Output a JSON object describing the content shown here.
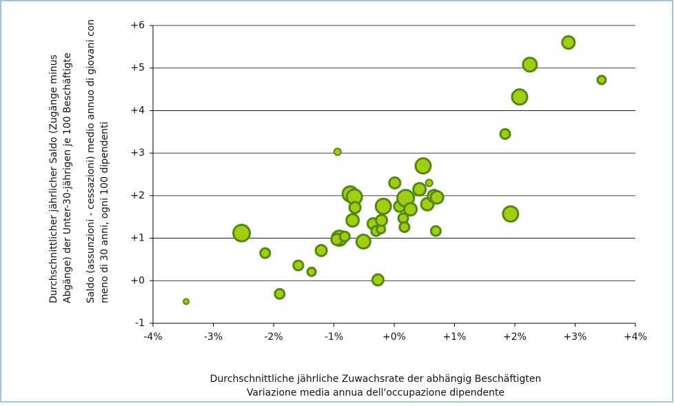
{
  "chart_data": {
    "type": "bubble",
    "x_label": [
      "Durchschnittliche jährliche Zuwachsrate der abhängig Beschäftigten",
      "Variazione media annua dell'occupazione dipendente"
    ],
    "y_label_de": [
      "Durchschnittlicher jährlicher Saldo (Zugänge minus",
      "Abgänge) der Unter-30-jährigen je 100 Beschäftigte"
    ],
    "y_label_it": [
      "Saldo (assunzioni - cessazioni) medio annuo di giovani con",
      "meno di 30 anni, ogni 100 dipendenti"
    ],
    "fill": "#a3cd12",
    "stroke": "#4e8a0f",
    "x": [
      -3.45,
      -2.53,
      -2.14,
      -1.9,
      -1.59,
      -1.37,
      -1.21,
      -0.94,
      -0.91,
      -0.95,
      -0.82,
      -0.73,
      -0.66,
      -0.65,
      -0.69,
      -0.51,
      -0.35,
      -0.3,
      -0.27,
      -0.22,
      -0.21,
      -0.18,
      0.01,
      0.09,
      0.15,
      0.17,
      0.19,
      0.27,
      0.42,
      0.48,
      0.55,
      0.58,
      0.66,
      0.69,
      0.71,
      1.84,
      1.93,
      2.08,
      2.25,
      2.89,
      3.44
    ],
    "y": [
      -0.49,
      1.12,
      0.65,
      -0.31,
      0.36,
      0.21,
      0.71,
      3.03,
      1.0,
      0.97,
      1.04,
      2.04,
      1.97,
      1.72,
      1.42,
      0.92,
      1.34,
      1.17,
      0.02,
      1.21,
      1.42,
      1.75,
      2.3,
      1.75,
      1.47,
      1.26,
      1.94,
      1.68,
      2.15,
      2.7,
      1.8,
      2.3,
      1.99,
      1.17,
      1.96,
      3.45,
      1.57,
      4.32,
      5.08,
      5.6,
      4.72
    ],
    "size": [
      4,
      12,
      7,
      7,
      7,
      6,
      8,
      5,
      11,
      8,
      7,
      11,
      11,
      8,
      9,
      10,
      8,
      7,
      8,
      6,
      8,
      11,
      8,
      8,
      7,
      7,
      12,
      9,
      9,
      11,
      9,
      5,
      9,
      7,
      9,
      7,
      11,
      11,
      10,
      9,
      6
    ],
    "xlim": [
      -4,
      4
    ],
    "xticks": [
      {
        "value": -4,
        "label": "-4%"
      },
      {
        "value": -3,
        "label": "-3%"
      },
      {
        "value": -2,
        "label": "-2%"
      },
      {
        "value": -1,
        "label": "-1%"
      },
      {
        "value": 0,
        "label": "+0%"
      },
      {
        "value": 1,
        "label": "+1%"
      },
      {
        "value": 2,
        "label": "+2%"
      },
      {
        "value": 3,
        "label": "+3%"
      },
      {
        "value": 4,
        "label": "+4%"
      }
    ],
    "ylim": [
      -1,
      6
    ],
    "yticks": [
      -1,
      {
        "value": 0,
        "label": "+0"
      },
      {
        "value": 1,
        "label": "+1"
      },
      {
        "value": 2,
        "label": "+2"
      },
      {
        "value": 3,
        "label": "+3"
      },
      {
        "value": 4,
        "label": "+4"
      },
      {
        "value": 5,
        "label": "+5"
      },
      {
        "value": 6,
        "label": "+6"
      }
    ],
    "grid": true
  }
}
